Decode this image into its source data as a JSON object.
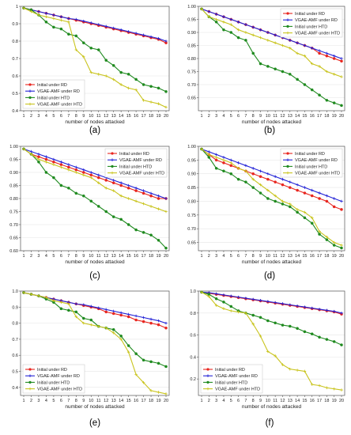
{
  "colors": {
    "initial_rd": "#e8251e",
    "vgae_rd": "#2323d6",
    "initial_htd": "#1f8a1f",
    "vgae_htd": "#c9c41e",
    "axis": "#555555",
    "grid": "#e6e6e6"
  },
  "chart_data": [
    {
      "type": "line",
      "panel_label": "(a)",
      "xlabel": "number of nodes attacked",
      "ylabel": "",
      "x": [
        1,
        2,
        3,
        4,
        5,
        6,
        7,
        8,
        9,
        10,
        11,
        12,
        13,
        14,
        15,
        16,
        17,
        18,
        19,
        20
      ],
      "xlim": [
        1,
        20
      ],
      "ylim": [
        0.4,
        1.0
      ],
      "yticks": [
        "0.4",
        "0.5",
        "0.6",
        "0.7",
        "0.8",
        "0.9",
        "1"
      ],
      "legend_position": "bottom-left",
      "series": [
        {
          "name": "Initial under RD",
          "values": [
            0.99,
            0.98,
            0.97,
            0.96,
            0.95,
            0.94,
            0.93,
            0.92,
            0.91,
            0.9,
            0.89,
            0.88,
            0.87,
            0.86,
            0.85,
            0.84,
            0.83,
            0.82,
            0.81,
            0.79
          ]
        },
        {
          "name": "VGAE-AMF under RD",
          "values": [
            0.99,
            0.98,
            0.97,
            0.96,
            0.95,
            0.94,
            0.93,
            0.925,
            0.915,
            0.905,
            0.895,
            0.885,
            0.875,
            0.865,
            0.855,
            0.845,
            0.835,
            0.825,
            0.815,
            0.8
          ]
        },
        {
          "name": "Initial under HTD",
          "values": [
            0.99,
            0.98,
            0.95,
            0.91,
            0.88,
            0.87,
            0.84,
            0.83,
            0.79,
            0.76,
            0.75,
            0.69,
            0.66,
            0.62,
            0.61,
            0.58,
            0.55,
            0.54,
            0.53,
            0.51
          ]
        },
        {
          "name": "VGAE-AMF under HTD",
          "values": [
            0.99,
            0.97,
            0.95,
            0.94,
            0.93,
            0.92,
            0.91,
            0.75,
            0.71,
            0.62,
            0.61,
            0.6,
            0.58,
            0.55,
            0.53,
            0.52,
            0.46,
            0.45,
            0.44,
            0.42
          ]
        }
      ]
    },
    {
      "type": "line",
      "panel_label": "(b)",
      "xlabel": "number of nodes attacked",
      "ylabel": "",
      "x": [
        1,
        2,
        3,
        4,
        5,
        6,
        7,
        8,
        9,
        10,
        11,
        12,
        13,
        14,
        15,
        16,
        17,
        18,
        19,
        20
      ],
      "xlim": [
        1,
        20
      ],
      "ylim": [
        0.6,
        1.0
      ],
      "yticks": [
        "0.65",
        "0.70",
        "0.75",
        "0.80",
        "0.85",
        "0.90",
        "0.95",
        "1.00"
      ],
      "legend_position": "top-right",
      "series": [
        {
          "name": "Initial under RD",
          "values": [
            0.99,
            0.98,
            0.97,
            0.96,
            0.95,
            0.94,
            0.93,
            0.92,
            0.91,
            0.9,
            0.89,
            0.88,
            0.87,
            0.86,
            0.85,
            0.84,
            0.82,
            0.81,
            0.8,
            0.79
          ]
        },
        {
          "name": "VGAE-AMF under RD",
          "values": [
            0.99,
            0.98,
            0.97,
            0.96,
            0.95,
            0.94,
            0.93,
            0.92,
            0.91,
            0.9,
            0.89,
            0.88,
            0.87,
            0.86,
            0.85,
            0.84,
            0.83,
            0.82,
            0.81,
            0.8
          ]
        },
        {
          "name": "Initial under HTD",
          "values": [
            0.99,
            0.96,
            0.94,
            0.91,
            0.9,
            0.88,
            0.87,
            0.82,
            0.78,
            0.77,
            0.76,
            0.75,
            0.74,
            0.72,
            0.7,
            0.68,
            0.66,
            0.64,
            0.63,
            0.62
          ]
        },
        {
          "name": "VGAE-AMF under HTD",
          "values": [
            0.99,
            0.96,
            0.95,
            0.94,
            0.93,
            0.91,
            0.9,
            0.89,
            0.88,
            0.87,
            0.86,
            0.85,
            0.84,
            0.82,
            0.81,
            0.78,
            0.77,
            0.75,
            0.74,
            0.73
          ]
        }
      ]
    },
    {
      "type": "line",
      "panel_label": "(c)",
      "xlabel": "number of nodes attacked",
      "ylabel": "",
      "x": [
        1,
        2,
        3,
        4,
        5,
        6,
        7,
        8,
        9,
        10,
        11,
        12,
        13,
        14,
        15,
        16,
        17,
        18,
        19,
        20
      ],
      "xlim": [
        1,
        20
      ],
      "ylim": [
        0.6,
        1.0
      ],
      "yticks": [
        "0.60",
        "0.65",
        "0.70",
        "0.75",
        "0.80",
        "0.85",
        "0.90",
        "0.95",
        "1.00"
      ],
      "legend_position": "top-right",
      "series": [
        {
          "name": "Initial under RD",
          "values": [
            0.99,
            0.97,
            0.96,
            0.95,
            0.94,
            0.93,
            0.92,
            0.91,
            0.9,
            0.89,
            0.88,
            0.87,
            0.86,
            0.85,
            0.84,
            0.83,
            0.82,
            0.81,
            0.8,
            0.8
          ]
        },
        {
          "name": "VGAE-AMF under RD",
          "values": [
            0.99,
            0.98,
            0.97,
            0.96,
            0.95,
            0.94,
            0.93,
            0.92,
            0.91,
            0.9,
            0.89,
            0.88,
            0.87,
            0.86,
            0.85,
            0.84,
            0.83,
            0.82,
            0.81,
            0.8
          ]
        },
        {
          "name": "Initial under HTD",
          "values": [
            0.99,
            0.97,
            0.94,
            0.9,
            0.88,
            0.85,
            0.84,
            0.82,
            0.81,
            0.79,
            0.77,
            0.75,
            0.73,
            0.72,
            0.7,
            0.68,
            0.67,
            0.66,
            0.64,
            0.61
          ]
        },
        {
          "name": "VGAE-AMF under HTD",
          "values": [
            0.99,
            0.97,
            0.95,
            0.94,
            0.93,
            0.92,
            0.91,
            0.9,
            0.89,
            0.88,
            0.86,
            0.84,
            0.83,
            0.81,
            0.8,
            0.79,
            0.78,
            0.77,
            0.76,
            0.75
          ]
        }
      ]
    },
    {
      "type": "line",
      "panel_label": "(d)",
      "xlabel": "number of nodes attacked",
      "ylabel": "",
      "x": [
        1,
        2,
        3,
        4,
        5,
        6,
        7,
        8,
        9,
        10,
        11,
        12,
        13,
        14,
        15,
        16,
        17,
        18,
        19,
        20
      ],
      "xlim": [
        1,
        20
      ],
      "ylim": [
        0.62,
        1.0
      ],
      "yticks": [
        "0.65",
        "0.70",
        "0.75",
        "0.80",
        "0.85",
        "0.90",
        "0.95",
        "1.00"
      ],
      "legend_position": "top-right",
      "series": [
        {
          "name": "Initial under RD",
          "values": [
            0.99,
            0.97,
            0.95,
            0.94,
            0.93,
            0.92,
            0.91,
            0.9,
            0.89,
            0.88,
            0.87,
            0.86,
            0.85,
            0.84,
            0.83,
            0.82,
            0.81,
            0.8,
            0.78,
            0.77
          ]
        },
        {
          "name": "VGAE-AMF under RD",
          "values": [
            0.99,
            0.98,
            0.97,
            0.96,
            0.95,
            0.94,
            0.93,
            0.92,
            0.91,
            0.9,
            0.89,
            0.88,
            0.87,
            0.86,
            0.85,
            0.84,
            0.83,
            0.82,
            0.81,
            0.8
          ]
        },
        {
          "name": "Initial under HTD",
          "values": [
            0.99,
            0.96,
            0.92,
            0.91,
            0.9,
            0.88,
            0.87,
            0.85,
            0.83,
            0.81,
            0.8,
            0.79,
            0.78,
            0.76,
            0.74,
            0.72,
            0.68,
            0.66,
            0.64,
            0.63
          ]
        },
        {
          "name": "VGAE-AMF under HTD",
          "values": [
            0.99,
            0.97,
            0.96,
            0.95,
            0.94,
            0.92,
            0.91,
            0.88,
            0.86,
            0.84,
            0.82,
            0.8,
            0.79,
            0.77,
            0.76,
            0.74,
            0.69,
            0.67,
            0.65,
            0.64
          ]
        }
      ]
    },
    {
      "type": "line",
      "panel_label": "(e)",
      "xlabel": "number of nodes attacked",
      "ylabel": "",
      "x": [
        1,
        2,
        3,
        4,
        5,
        6,
        7,
        8,
        9,
        10,
        11,
        12,
        13,
        14,
        15,
        16,
        17,
        18,
        19,
        20
      ],
      "xlim": [
        1,
        20
      ],
      "ylim": [
        0.35,
        1.0
      ],
      "yticks": [
        "0.4",
        "0.5",
        "0.6",
        "0.7",
        "0.8",
        "0.9",
        "1.0"
      ],
      "legend_position": "bottom-left",
      "series": [
        {
          "name": "Initial under RD",
          "values": [
            0.99,
            0.98,
            0.97,
            0.96,
            0.95,
            0.94,
            0.93,
            0.92,
            0.91,
            0.9,
            0.89,
            0.87,
            0.86,
            0.85,
            0.84,
            0.82,
            0.81,
            0.8,
            0.79,
            0.77
          ]
        },
        {
          "name": "VGAE-AMF under RD",
          "values": [
            0.99,
            0.98,
            0.97,
            0.96,
            0.95,
            0.94,
            0.93,
            0.92,
            0.915,
            0.905,
            0.895,
            0.885,
            0.875,
            0.865,
            0.855,
            0.845,
            0.835,
            0.825,
            0.815,
            0.8
          ]
        },
        {
          "name": "Initial under HTD",
          "values": [
            0.99,
            0.98,
            0.97,
            0.95,
            0.93,
            0.89,
            0.88,
            0.87,
            0.83,
            0.82,
            0.78,
            0.77,
            0.76,
            0.72,
            0.66,
            0.61,
            0.57,
            0.56,
            0.55,
            0.53
          ]
        },
        {
          "name": "VGAE-AMF under HTD",
          "values": [
            0.99,
            0.98,
            0.97,
            0.96,
            0.94,
            0.93,
            0.92,
            0.84,
            0.8,
            0.79,
            0.78,
            0.77,
            0.74,
            0.7,
            0.62,
            0.48,
            0.43,
            0.38,
            0.37,
            0.36
          ]
        }
      ]
    },
    {
      "type": "line",
      "panel_label": "(f)",
      "xlabel": "number of nodes attacked",
      "ylabel": "",
      "x": [
        1,
        2,
        3,
        4,
        5,
        6,
        7,
        8,
        9,
        10,
        11,
        12,
        13,
        14,
        15,
        16,
        17,
        18,
        19,
        20
      ],
      "xlim": [
        1,
        20
      ],
      "ylim": [
        0.05,
        1.0
      ],
      "yticks": [
        "0.2",
        "0.4",
        "0.6",
        "0.8",
        "1.0"
      ],
      "legend_position": "bottom-left",
      "series": [
        {
          "name": "Initial under RD",
          "values": [
            0.99,
            0.98,
            0.97,
            0.96,
            0.95,
            0.94,
            0.93,
            0.92,
            0.91,
            0.9,
            0.89,
            0.88,
            0.87,
            0.86,
            0.85,
            0.84,
            0.83,
            0.82,
            0.81,
            0.79
          ]
        },
        {
          "name": "VGAE-AMF under RD",
          "values": [
            0.99,
            0.985,
            0.975,
            0.965,
            0.955,
            0.945,
            0.935,
            0.925,
            0.915,
            0.905,
            0.895,
            0.885,
            0.875,
            0.865,
            0.855,
            0.845,
            0.835,
            0.825,
            0.815,
            0.8
          ]
        },
        {
          "name": "Initial under HTD",
          "values": [
            0.99,
            0.97,
            0.93,
            0.9,
            0.86,
            0.82,
            0.8,
            0.78,
            0.76,
            0.73,
            0.71,
            0.69,
            0.68,
            0.66,
            0.63,
            0.61,
            0.58,
            0.56,
            0.54,
            0.51
          ]
        },
        {
          "name": "VGAE-AMF under HTD",
          "values": [
            0.99,
            0.95,
            0.87,
            0.84,
            0.82,
            0.81,
            0.8,
            0.7,
            0.59,
            0.45,
            0.41,
            0.33,
            0.29,
            0.28,
            0.27,
            0.15,
            0.14,
            0.12,
            0.11,
            0.1
          ]
        }
      ]
    }
  ]
}
